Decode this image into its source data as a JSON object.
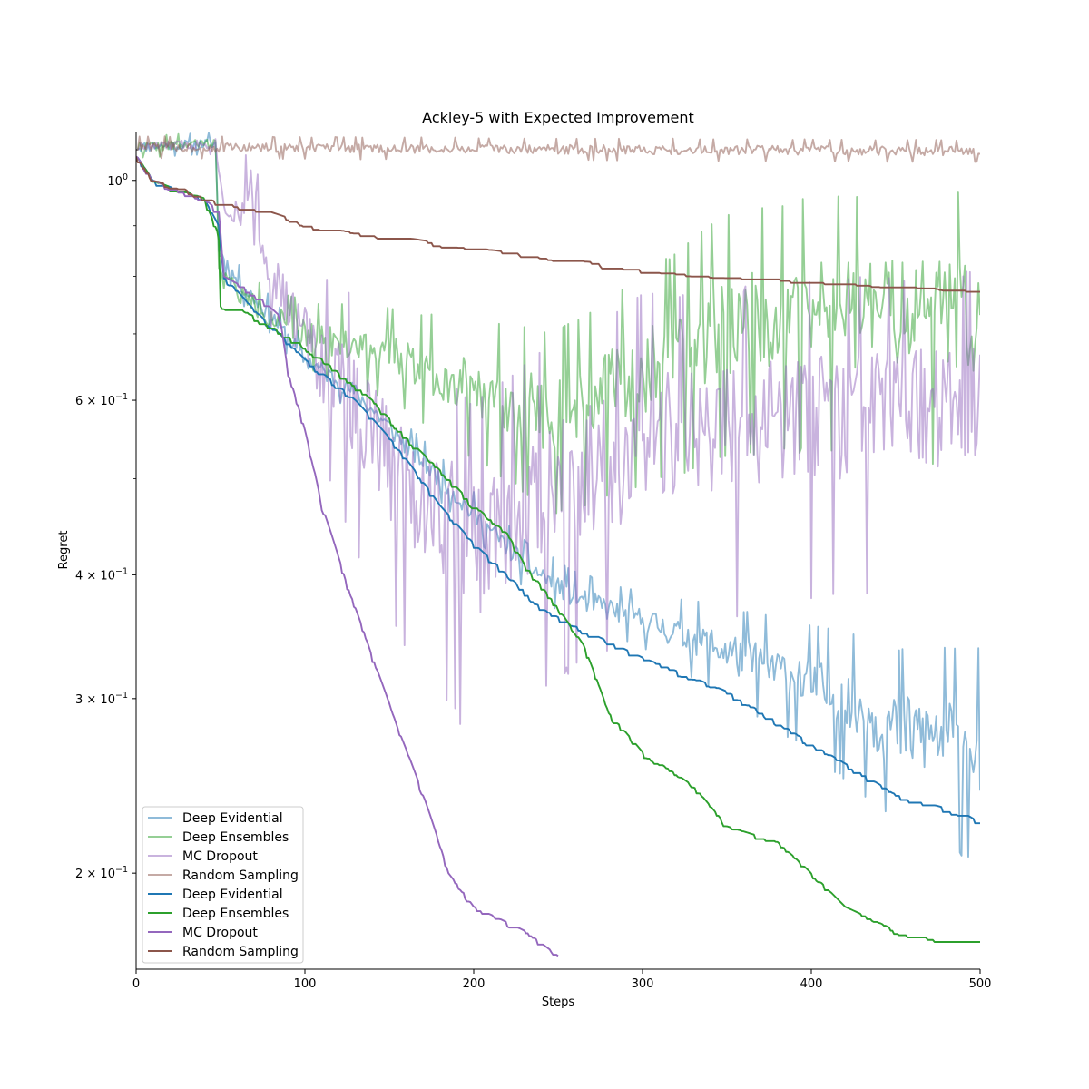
{
  "chart_data": {
    "type": "line",
    "title": "Ackley-5 with Expected Improvement",
    "xlabel": "Steps",
    "ylabel": "Regret",
    "yscale": "log",
    "xlim": [
      0,
      500
    ],
    "ylim": [
      0.16,
      1.12
    ],
    "xticks": [
      0,
      100,
      200,
      300,
      400,
      500
    ],
    "xtick_labels": [
      "0",
      "100",
      "200",
      "300",
      "400",
      "500"
    ],
    "yticks": [
      {
        "value": 1.0,
        "base": "10",
        "exp": "0"
      },
      {
        "value": 0.6,
        "base": "6 × 10",
        "exp": "−1"
      },
      {
        "value": 0.4,
        "base": "4 × 10",
        "exp": "−1"
      },
      {
        "value": 0.3,
        "base": "3 × 10",
        "exp": "−1"
      },
      {
        "value": 0.2,
        "base": "2 × 10",
        "exp": "−1"
      }
    ],
    "minor_yticks": [
      0.9,
      0.8,
      0.7,
      0.5
    ],
    "legend_position": "lower-left",
    "series": [
      {
        "name": "Deep Evidential",
        "color": "#1f77b4",
        "style": "faint",
        "seed": 11,
        "anchors": [
          [
            0,
            1.08
          ],
          [
            47,
            1.09
          ],
          [
            49,
            0.85
          ],
          [
            60,
            0.79
          ],
          [
            80,
            0.73
          ],
          [
            100,
            0.66
          ],
          [
            130,
            0.61
          ],
          [
            160,
            0.54
          ],
          [
            200,
            0.46
          ],
          [
            230,
            0.41
          ],
          [
            260,
            0.38
          ],
          [
            300,
            0.36
          ],
          [
            350,
            0.335
          ],
          [
            400,
            0.31
          ],
          [
            450,
            0.28
          ],
          [
            500,
            0.27
          ]
        ],
        "noise": [
          [
            0,
            0.012
          ],
          [
            47,
            0.012
          ],
          [
            60,
            0.02
          ],
          [
            200,
            0.025
          ],
          [
            300,
            0.03
          ],
          [
            400,
            0.07
          ],
          [
            500,
            0.12
          ]
        ]
      },
      {
        "name": "Deep Ensembles",
        "color": "#2ca02c",
        "style": "faint",
        "seed": 22,
        "anchors": [
          [
            0,
            1.08
          ],
          [
            47,
            1.09
          ],
          [
            49,
            0.82
          ],
          [
            60,
            0.77
          ],
          [
            80,
            0.73
          ],
          [
            100,
            0.7
          ],
          [
            150,
            0.67
          ],
          [
            200,
            0.62
          ],
          [
            250,
            0.58
          ],
          [
            300,
            0.64
          ],
          [
            350,
            0.72
          ],
          [
            400,
            0.74
          ],
          [
            450,
            0.74
          ],
          [
            500,
            0.74
          ]
        ],
        "noise": [
          [
            0,
            0.012
          ],
          [
            47,
            0.012
          ],
          [
            60,
            0.025
          ],
          [
            150,
            0.05
          ],
          [
            250,
            0.1
          ],
          [
            350,
            0.13
          ],
          [
            500,
            0.15
          ]
        ]
      },
      {
        "name": "MC Dropout",
        "color": "#9467bd",
        "style": "faint",
        "seed": 33,
        "anchors": [
          [
            0,
            1.08
          ],
          [
            47,
            1.09
          ],
          [
            52,
            0.94
          ],
          [
            62,
            0.93
          ],
          [
            68,
            1.0
          ],
          [
            75,
            0.85
          ],
          [
            90,
            0.74
          ],
          [
            110,
            0.66
          ],
          [
            150,
            0.52
          ],
          [
            200,
            0.43
          ],
          [
            250,
            0.5
          ],
          [
            300,
            0.55
          ],
          [
            400,
            0.58
          ],
          [
            500,
            0.6
          ]
        ],
        "noise": [
          [
            0,
            0.012
          ],
          [
            47,
            0.012
          ],
          [
            60,
            0.04
          ],
          [
            100,
            0.08
          ],
          [
            130,
            0.14
          ],
          [
            200,
            0.18
          ],
          [
            300,
            0.18
          ],
          [
            500,
            0.16
          ]
        ]
      },
      {
        "name": "Random Sampling",
        "color": "#8c564b",
        "style": "faint",
        "seed": 44,
        "anchors": [
          [
            0,
            1.08
          ],
          [
            500,
            1.07
          ]
        ],
        "noise": [
          [
            0,
            0.012
          ],
          [
            500,
            0.012
          ]
        ]
      },
      {
        "name": "Deep Evidential",
        "color": "#1f77b4",
        "style": "solid",
        "seed": 55,
        "anchors": [
          [
            0,
            1.06
          ],
          [
            10,
            1.0
          ],
          [
            20,
            0.985
          ],
          [
            40,
            0.96
          ],
          [
            49,
            0.9
          ],
          [
            52,
            0.8
          ],
          [
            70,
            0.74
          ],
          [
            100,
            0.66
          ],
          [
            130,
            0.6
          ],
          [
            150,
            0.55
          ],
          [
            180,
            0.47
          ],
          [
            200,
            0.43
          ],
          [
            220,
            0.4
          ],
          [
            240,
            0.37
          ],
          [
            260,
            0.355
          ],
          [
            300,
            0.33
          ],
          [
            350,
            0.305
          ],
          [
            400,
            0.27
          ],
          [
            450,
            0.24
          ],
          [
            490,
            0.23
          ],
          [
            500,
            0.225
          ]
        ]
      },
      {
        "name": "Deep Ensembles",
        "color": "#2ca02c",
        "style": "solid",
        "seed": 66,
        "anchors": [
          [
            0,
            1.06
          ],
          [
            10,
            1.0
          ],
          [
            20,
            0.985
          ],
          [
            40,
            0.96
          ],
          [
            49,
            0.88
          ],
          [
            49.5,
            0.75
          ],
          [
            60,
            0.745
          ],
          [
            100,
            0.68
          ],
          [
            140,
            0.6
          ],
          [
            160,
            0.55
          ],
          [
            200,
            0.47
          ],
          [
            220,
            0.44
          ],
          [
            230,
            0.41
          ],
          [
            250,
            0.37
          ],
          [
            265,
            0.34
          ],
          [
            280,
            0.29
          ],
          [
            300,
            0.265
          ],
          [
            330,
            0.245
          ],
          [
            350,
            0.223
          ],
          [
            380,
            0.215
          ],
          [
            400,
            0.2
          ],
          [
            420,
            0.185
          ],
          [
            450,
            0.175
          ],
          [
            470,
            0.172
          ],
          [
            500,
            0.172
          ]
        ]
      },
      {
        "name": "MC Dropout",
        "color": "#9467bd",
        "style": "solid",
        "seed": 77,
        "anchors": [
          [
            0,
            1.06
          ],
          [
            10,
            1.0
          ],
          [
            20,
            0.985
          ],
          [
            40,
            0.96
          ],
          [
            49,
            0.93
          ],
          [
            52,
            0.8
          ],
          [
            70,
            0.77
          ],
          [
            85,
            0.73
          ],
          [
            90,
            0.64
          ],
          [
            100,
            0.56
          ],
          [
            110,
            0.47
          ],
          [
            125,
            0.39
          ],
          [
            140,
            0.33
          ],
          [
            155,
            0.28
          ],
          [
            170,
            0.24
          ],
          [
            185,
            0.2
          ],
          [
            200,
            0.185
          ],
          [
            230,
            0.175
          ],
          [
            250,
            0.165
          ]
        ]
      },
      {
        "name": "Random Sampling",
        "color": "#8c564b",
        "style": "solid",
        "seed": 88,
        "anchors": [
          [
            0,
            1.06
          ],
          [
            10,
            1.0
          ],
          [
            25,
            0.985
          ],
          [
            50,
            0.95
          ],
          [
            75,
            0.935
          ],
          [
            100,
            0.905
          ],
          [
            150,
            0.88
          ],
          [
            200,
            0.855
          ],
          [
            250,
            0.835
          ],
          [
            300,
            0.815
          ],
          [
            350,
            0.805
          ],
          [
            400,
            0.795
          ],
          [
            450,
            0.785
          ],
          [
            500,
            0.78
          ]
        ]
      }
    ]
  }
}
